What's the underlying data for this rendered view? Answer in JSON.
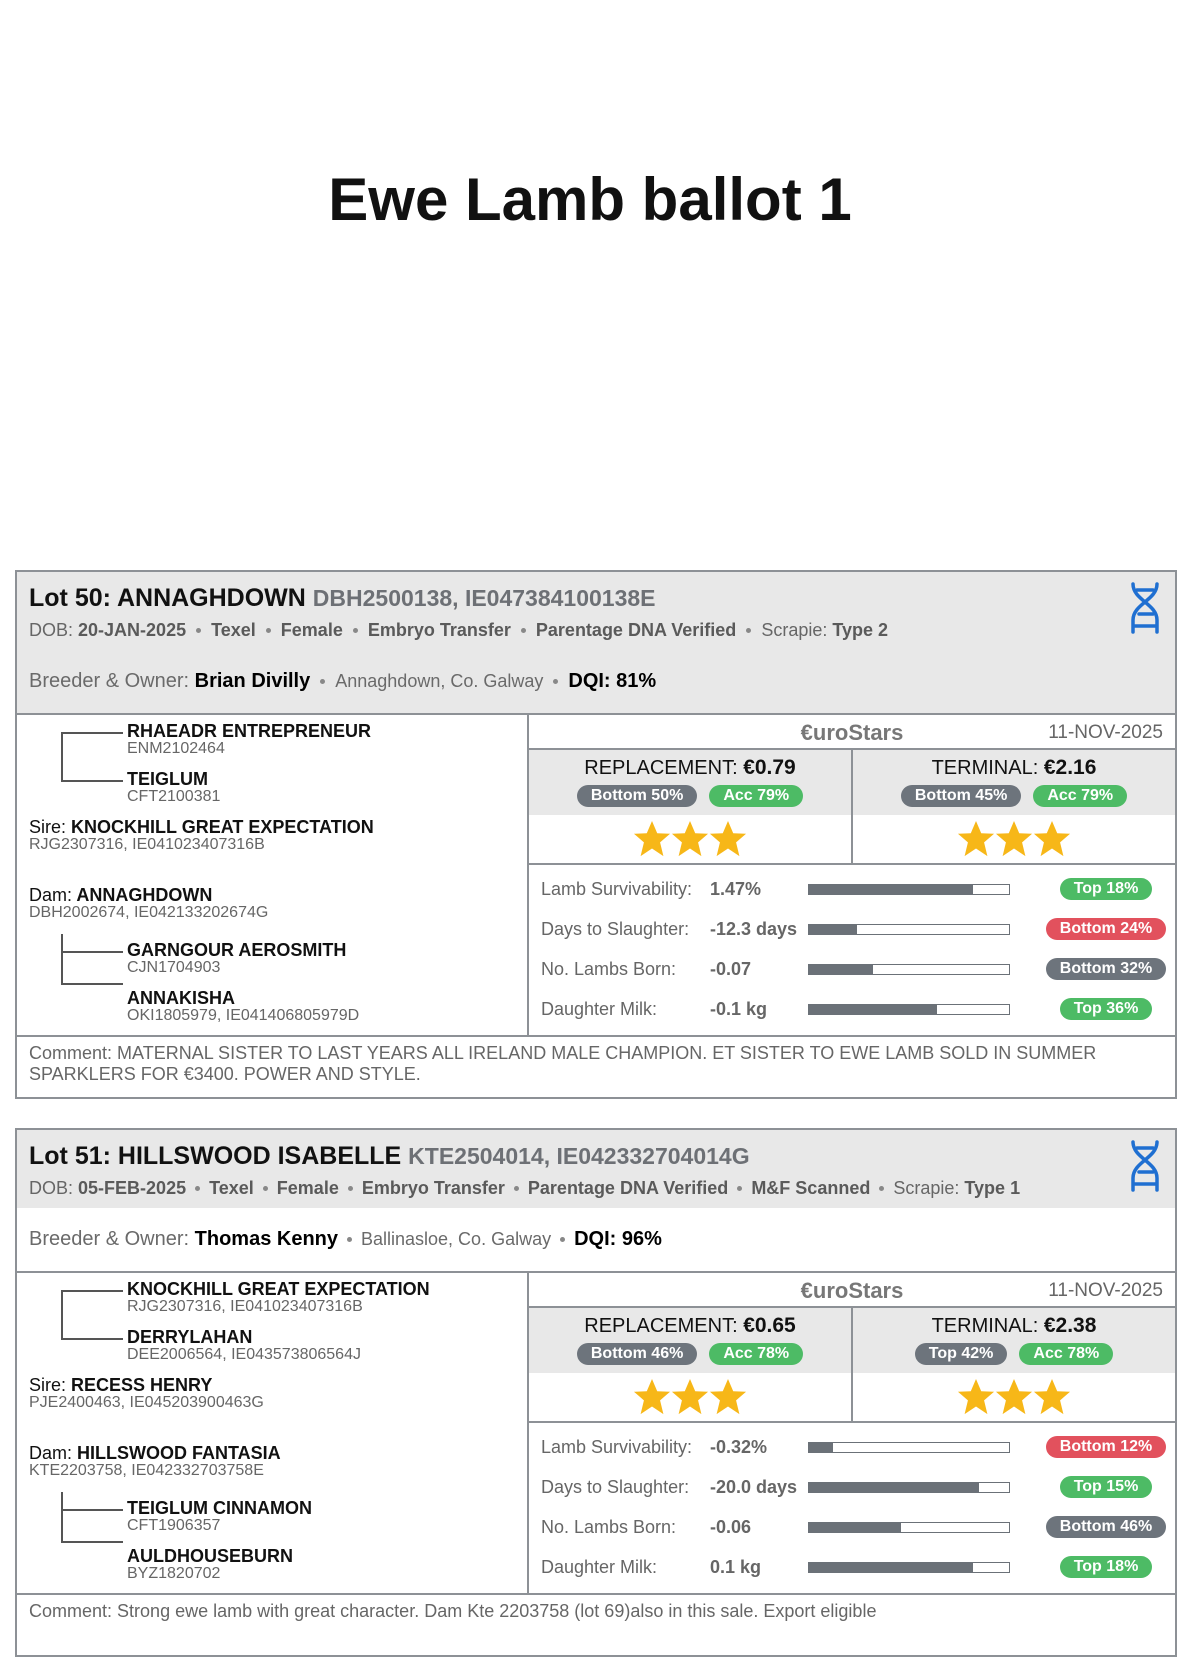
{
  "title": "Ewe Lamb ballot 1",
  "lots": [
    {
      "heading": "Lot 50: ANNAGHDOWN",
      "ids": "DBH2500138, IE047384100138E",
      "details": [
        {
          "label": "DOB:",
          "value": "20-JAN-2025"
        },
        {
          "value": "Texel"
        },
        {
          "value": "Female"
        },
        {
          "value": "Embryo Transfer"
        },
        {
          "value": "Parentage DNA Verified"
        },
        {
          "label": "Scrapie:",
          "value": "Type 2"
        }
      ],
      "breeder_shaded": true,
      "breeder": {
        "label": "Breeder & Owner:",
        "name": "Brian Divilly",
        "location": "Annaghdown, Co. Galway",
        "dqi": "DQI: 81%"
      },
      "pedigree": {
        "sire_sire": {
          "name": "RHAEADR ENTREPRENEUR",
          "id": "ENM2102464"
        },
        "sire_dam": {
          "name": "TEIGLUM",
          "id": "CFT2100381"
        },
        "sire": {
          "label": "Sire:",
          "name": "KNOCKHILL GREAT EXPECTATION",
          "id": "RJG2307316, IE041023407316B"
        },
        "dam": {
          "label": "Dam:",
          "name": "ANNAGHDOWN",
          "id": "DBH2002674, IE042133202674G"
        },
        "dam_sire": {
          "name": "GARNGOUR AEROSMITH",
          "id": "CJN1704903"
        },
        "dam_dam": {
          "name": "ANNAKISHA",
          "id": "OKI1805979, IE041406805979D"
        }
      },
      "euro": {
        "brand": "€uroStars",
        "date": "11-NOV-2025",
        "indexes": [
          {
            "label": "REPLACEMENT:",
            "value": "€0.79",
            "stars": 3,
            "badges": [
              {
                "text": "Bottom 50%",
                "color": "#6d747c"
              },
              {
                "text": "Acc 79%",
                "color": "#4dbb65"
              }
            ]
          },
          {
            "label": "TERMINAL:",
            "value": "€2.16",
            "stars": 3,
            "badges": [
              {
                "text": "Bottom 45%",
                "color": "#6d747c"
              },
              {
                "text": "Acc 79%",
                "color": "#4dbb65"
              }
            ]
          }
        ],
        "traits": [
          {
            "name": "Lamb Survivability:",
            "value": "1.47%",
            "bar": 82,
            "badge": {
              "text": "Top 18%",
              "color": "#4dbb65"
            }
          },
          {
            "name": "Days to Slaughter:",
            "value": "-12.3 days",
            "bar": 24,
            "badge": {
              "text": "Bottom 24%",
              "color": "#e2515d"
            }
          },
          {
            "name": "No. Lambs Born:",
            "value": "-0.07",
            "bar": 32,
            "badge": {
              "text": "Bottom 32%",
              "color": "#6d747c"
            }
          },
          {
            "name": "Daughter Milk:",
            "value": "-0.1 kg",
            "bar": 64,
            "badge": {
              "text": "Top 36%",
              "color": "#4dbb65"
            }
          }
        ]
      },
      "comment": {
        "label": "Comment:",
        "text": "MATERNAL SISTER TO LAST YEARS ALL IRELAND MALE CHAMPION. ET SISTER TO EWE LAMB SOLD IN SUMMER SPARKLERS FOR €3400. POWER AND STYLE."
      }
    },
    {
      "heading": "Lot 51: HILLSWOOD ISABELLE",
      "ids": "KTE2504014, IE042332704014G",
      "details": [
        {
          "label": "DOB:",
          "value": "05-FEB-2025"
        },
        {
          "value": "Texel"
        },
        {
          "value": "Female"
        },
        {
          "value": "Embryo Transfer"
        },
        {
          "value": "Parentage DNA Verified"
        },
        {
          "value": "M&F Scanned"
        },
        {
          "label": "Scrapie:",
          "value": "Type 1"
        }
      ],
      "breeder_shaded": false,
      "breeder": {
        "label": "Breeder & Owner:",
        "name": "Thomas Kenny",
        "location": "Ballinasloe, Co. Galway",
        "dqi": "DQI: 96%"
      },
      "pedigree": {
        "sire_sire": {
          "name": "KNOCKHILL GREAT EXPECTATION",
          "id": "RJG2307316, IE041023407316B"
        },
        "sire_dam": {
          "name": "DERRYLAHAN",
          "id": "DEE2006564, IE043573806564J"
        },
        "sire": {
          "label": "Sire:",
          "name": "RECESS HENRY",
          "id": "PJE2400463, IE045203900463G"
        },
        "dam": {
          "label": "Dam:",
          "name": "HILLSWOOD FANTASIA",
          "id": "KTE2203758, IE042332703758E"
        },
        "dam_sire": {
          "name": "TEIGLUM CINNAMON",
          "id": "CFT1906357"
        },
        "dam_dam": {
          "name": "AULDHOUSEBURN",
          "id": "BYZ1820702"
        }
      },
      "euro": {
        "brand": "€uroStars",
        "date": "11-NOV-2025",
        "indexes": [
          {
            "label": "REPLACEMENT:",
            "value": "€0.65",
            "stars": 3,
            "badges": [
              {
                "text": "Bottom 46%",
                "color": "#6d747c"
              },
              {
                "text": "Acc 78%",
                "color": "#4dbb65"
              }
            ]
          },
          {
            "label": "TERMINAL:",
            "value": "€2.38",
            "stars": 3,
            "badges": [
              {
                "text": "Top 42%",
                "color": "#6d747c"
              },
              {
                "text": "Acc 78%",
                "color": "#4dbb65"
              }
            ]
          }
        ],
        "traits": [
          {
            "name": "Lamb Survivability:",
            "value": "-0.32%",
            "bar": 12,
            "badge": {
              "text": "Bottom 12%",
              "color": "#e2515d"
            }
          },
          {
            "name": "Days to Slaughter:",
            "value": "-20.0 days",
            "bar": 85,
            "badge": {
              "text": "Top 15%",
              "color": "#4dbb65"
            }
          },
          {
            "name": "No. Lambs Born:",
            "value": "-0.06",
            "bar": 46,
            "badge": {
              "text": "Bottom 46%",
              "color": "#6d747c"
            }
          },
          {
            "name": "Daughter Milk:",
            "value": "0.1 kg",
            "bar": 82,
            "badge": {
              "text": "Top 18%",
              "color": "#4dbb65"
            }
          }
        ]
      },
      "comment": {
        "label": "Comment:",
        "text": "Strong ewe lamb with great character. Dam Kte 2203758 (lot 69)also in this sale. Export eligible"
      }
    }
  ]
}
